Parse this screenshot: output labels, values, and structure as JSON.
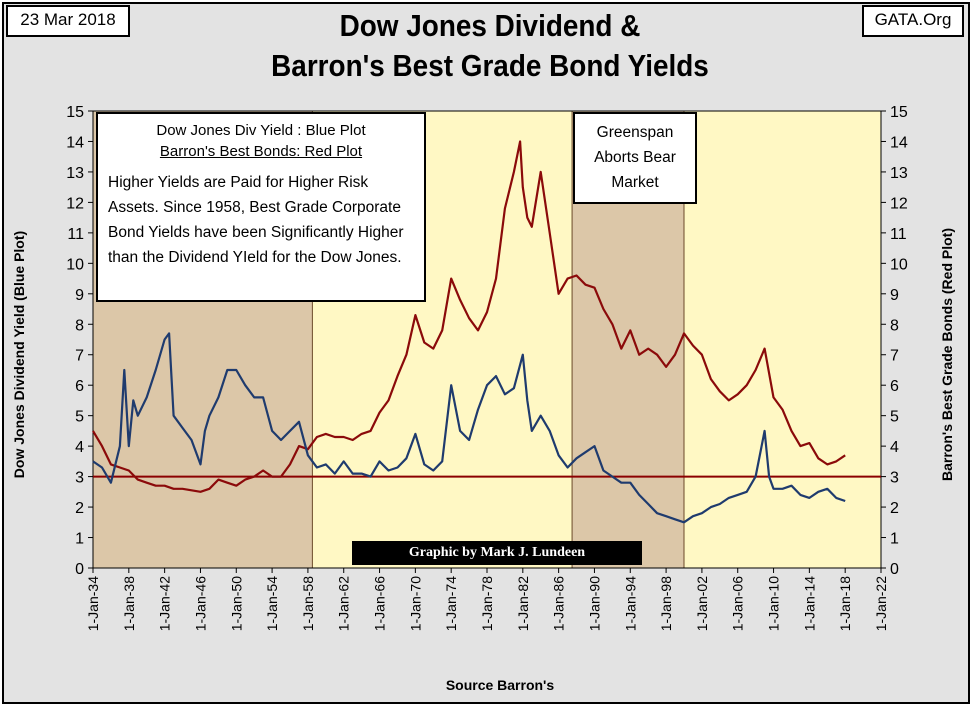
{
  "header": {
    "date": "23 Mar 2018",
    "source": "GATA.Org",
    "title_line1": "Dow Jones Dividend &",
    "title_line2": "Barron's Best Grade Bond Yields"
  },
  "legend": {
    "line1": "Dow Jones Div Yield : Blue Plot",
    "line2": "Barron's Best Bonds: Red Plot",
    "note": "Higher Yields are Paid for Higher Risk Assets.  Since 1958, Best Grade Corporate Bond Yields have been Significantly Higher than the Dividend YIeld for the Dow Jones."
  },
  "annotation": {
    "text": "Greenspan Aborts Bear Market"
  },
  "credit": "Graphic by Mark J. Lundeen",
  "chart_data": {
    "type": "line",
    "title": "Dow Jones Dividend & Barron's Best Grade Bond Yields",
    "xlabel": "Source Barron's",
    "ylabel_left": "Dow Jones Dividend Yield (Blue Plot)",
    "ylabel_right": "Barron's Best Grade Bonds (Red Plot)",
    "ylim": [
      0,
      15
    ],
    "y_ticks": [
      "0",
      "1",
      "2",
      "3",
      "4",
      "5",
      "6",
      "7",
      "8",
      "9",
      "10",
      "11",
      "12",
      "13",
      "14",
      "15"
    ],
    "x_ticks": [
      "1-Jan-34",
      "1-Jan-38",
      "1-Jan-42",
      "1-Jan-46",
      "1-Jan-50",
      "1-Jan-54",
      "1-Jan-58",
      "1-Jan-62",
      "1-Jan-66",
      "1-Jan-70",
      "1-Jan-74",
      "1-Jan-78",
      "1-Jan-82",
      "1-Jan-86",
      "1-Jan-90",
      "1-Jan-94",
      "1-Jan-98",
      "1-Jan-02",
      "1-Jan-06",
      "1-Jan-10",
      "1-Jan-14",
      "1-Jan-18",
      "1-Jan-22"
    ],
    "xlim": [
      1934,
      2022
    ],
    "reference_line": 3.0,
    "shaded_regions": [
      [
        1934,
        1958.5
      ],
      [
        1987.5,
        2000
      ]
    ],
    "grid": false,
    "legend": "top-left",
    "colors": {
      "dividend": "#1f3b6e",
      "bonds": "#8b0a0a",
      "background": "#fff8c4",
      "shade": "#dcc7a8",
      "reference": "#8b0000"
    },
    "series": [
      {
        "x": [
          1934,
          1935,
          1936,
          1937,
          1937.5,
          1938,
          1938.5,
          1939,
          1940,
          1941,
          1942,
          1942.5,
          1943,
          1944,
          1945,
          1946,
          1946.5,
          1947,
          1948,
          1949,
          1950,
          1951,
          1952,
          1953,
          1954,
          1955,
          1956,
          1957,
          1958,
          1959,
          1960,
          1961,
          1962,
          1963,
          1964,
          1965,
          1966,
          1967,
          1968,
          1969,
          1970,
          1971,
          1972,
          1973,
          1974,
          1975,
          1976,
          1977,
          1978,
          1979,
          1980,
          1981,
          1982,
          1982.5,
          1983,
          1984,
          1985,
          1986,
          1987,
          1988,
          1989,
          1990,
          1991,
          1992,
          1993,
          1994,
          1995,
          1996,
          1997,
          1998,
          1999,
          2000,
          2001,
          2002,
          2003,
          2004,
          2005,
          2006,
          2007,
          2008,
          2009,
          2009.5,
          2010,
          2011,
          2012,
          2013,
          2014,
          2015,
          2016,
          2017,
          2018
        ],
        "values": [
          3.5,
          3.3,
          2.8,
          4.0,
          6.5,
          4.0,
          5.5,
          5.0,
          5.6,
          6.5,
          7.5,
          7.7,
          5.0,
          4.6,
          4.2,
          3.4,
          4.5,
          5.0,
          5.6,
          6.5,
          6.5,
          6.0,
          5.6,
          5.6,
          4.5,
          4.2,
          4.5,
          4.8,
          3.7,
          3.3,
          3.4,
          3.1,
          3.5,
          3.1,
          3.1,
          3.0,
          3.5,
          3.2,
          3.3,
          3.6,
          4.4,
          3.4,
          3.2,
          3.5,
          6.0,
          4.5,
          4.2,
          5.2,
          6.0,
          6.3,
          5.7,
          5.9,
          7.0,
          5.5,
          4.5,
          5.0,
          4.5,
          3.7,
          3.3,
          3.6,
          3.8,
          4.0,
          3.2,
          3.0,
          2.8,
          2.8,
          2.4,
          2.1,
          1.8,
          1.7,
          1.6,
          1.5,
          1.7,
          1.8,
          2.0,
          2.1,
          2.3,
          2.4,
          2.5,
          3.0,
          4.5,
          3.0,
          2.6,
          2.6,
          2.7,
          2.4,
          2.3,
          2.5,
          2.6,
          2.3,
          2.2
        ]
      },
      {
        "x": [
          1934,
          1935,
          1936,
          1937,
          1938,
          1939,
          1940,
          1941,
          1942,
          1943,
          1944,
          1945,
          1946,
          1947,
          1948,
          1949,
          1950,
          1951,
          1952,
          1953,
          1954,
          1955,
          1956,
          1957,
          1958,
          1959,
          1960,
          1961,
          1962,
          1963,
          1964,
          1965,
          1966,
          1967,
          1968,
          1969,
          1970,
          1971,
          1972,
          1973,
          1974,
          1975,
          1976,
          1977,
          1978,
          1979,
          1980,
          1981,
          1981.7,
          1982,
          1982.5,
          1983,
          1984,
          1985,
          1986,
          1987,
          1988,
          1989,
          1990,
          1991,
          1992,
          1993,
          1994,
          1995,
          1996,
          1997,
          1998,
          1999,
          2000,
          2001,
          2002,
          2003,
          2004,
          2005,
          2006,
          2007,
          2008,
          2009,
          2010,
          2011,
          2012,
          2013,
          2014,
          2015,
          2016,
          2017,
          2018
        ],
        "values": [
          4.5,
          4.0,
          3.4,
          3.3,
          3.2,
          2.9,
          2.8,
          2.7,
          2.7,
          2.6,
          2.6,
          2.55,
          2.5,
          2.6,
          2.9,
          2.8,
          2.7,
          2.9,
          3.0,
          3.2,
          3.0,
          3.0,
          3.4,
          4.0,
          3.9,
          4.3,
          4.4,
          4.3,
          4.3,
          4.2,
          4.4,
          4.5,
          5.1,
          5.5,
          6.3,
          7.0,
          8.3,
          7.4,
          7.2,
          7.8,
          9.5,
          8.8,
          8.2,
          7.8,
          8.4,
          9.5,
          11.8,
          13.0,
          14.0,
          12.5,
          11.5,
          11.2,
          13.0,
          11.0,
          9.0,
          9.5,
          9.6,
          9.3,
          9.2,
          8.5,
          8.0,
          7.2,
          7.8,
          7.0,
          7.2,
          7.0,
          6.6,
          7.0,
          7.7,
          7.3,
          7.0,
          6.2,
          5.8,
          5.5,
          5.7,
          6.0,
          6.5,
          7.2,
          5.6,
          5.2,
          4.5,
          4.0,
          4.1,
          3.6,
          3.4,
          3.5,
          3.7
        ]
      }
    ]
  }
}
